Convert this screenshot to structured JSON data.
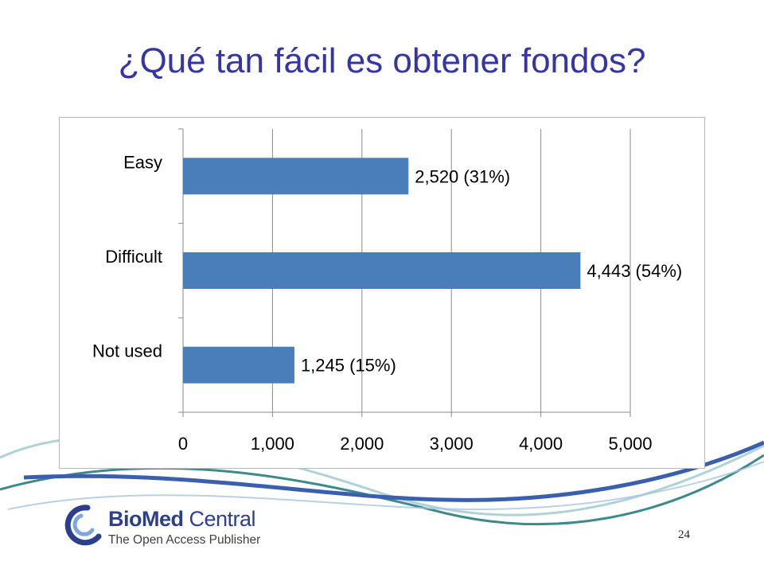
{
  "slide": {
    "title": "¿Qué tan fácil es obtener fondos?",
    "page_number": "24"
  },
  "logo": {
    "name_bold": "BioMed",
    "name_regular": "Central",
    "tagline": "The Open Access Publisher"
  },
  "colors": {
    "title": "#3535a5",
    "bar": "#4a7ebb",
    "swoosh_blue": "#3a5fae",
    "swoosh_teal": "#3d8a8a"
  },
  "chart_data": {
    "type": "bar",
    "orientation": "horizontal",
    "categories": [
      "Easy",
      "Difficult",
      "Not used"
    ],
    "values": [
      2520,
      4443,
      1245
    ],
    "data_labels": [
      "2,520  (31%)",
      "4,443  (54%)",
      "1,245 (15%)"
    ],
    "xlim": [
      0,
      5000
    ],
    "x_ticks": [
      0,
      1000,
      2000,
      3000,
      4000,
      5000
    ],
    "x_tick_labels": [
      "0",
      "1,000",
      "2,000",
      "3,000",
      "4,000",
      "5,000"
    ],
    "grid": true,
    "legend": "none",
    "bar_color": "#4a7ebb"
  }
}
